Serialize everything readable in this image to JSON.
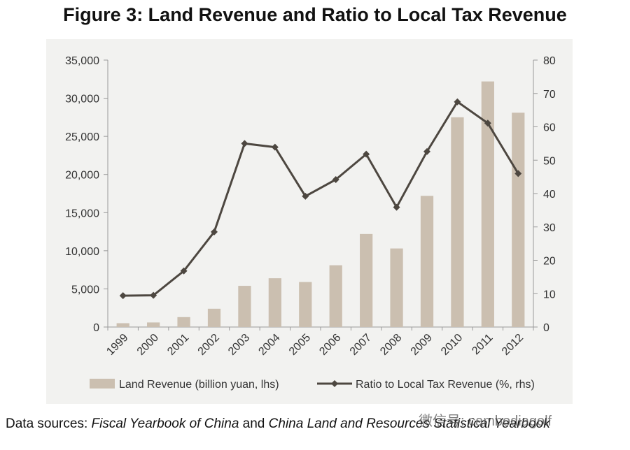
{
  "title": "Figure 3: Land Revenue and Ratio to Local Tax Revenue",
  "chart_data": {
    "type": "bar",
    "categories": [
      "1999",
      "2000",
      "2001",
      "2002",
      "2003",
      "2004",
      "2005",
      "2006",
      "2007",
      "2008",
      "2009",
      "2010",
      "2011",
      "2012"
    ],
    "series": [
      {
        "name": "Land Revenue (billion yuan, lhs)",
        "type": "bar",
        "axis": "left",
        "color": "#cbbfb0",
        "values": [
          500,
          600,
          1300,
          2400,
          5400,
          6400,
          5900,
          8100,
          12200,
          10300,
          17200,
          27500,
          32200,
          28100
        ]
      },
      {
        "name": "Ratio to Local Tax Revenue (%, rhs)",
        "type": "line",
        "axis": "right",
        "color": "#4d4740",
        "values": [
          9.4,
          9.5,
          16.8,
          28.5,
          55,
          53.9,
          39.2,
          44.2,
          51.8,
          35.9,
          52.6,
          67.5,
          61.1,
          46
        ]
      }
    ],
    "ylim_left": [
      0,
      35000
    ],
    "yticks_left": [
      "0",
      "5,000",
      "10,000",
      "15,000",
      "20,000",
      "25,000",
      "30,000",
      "35,000"
    ],
    "ylim_right": [
      0,
      80
    ],
    "yticks_right": [
      "0",
      "10",
      "20",
      "30",
      "40",
      "50",
      "60",
      "70",
      "80"
    ],
    "legend_position": "bottom"
  },
  "source": {
    "prefix": "Data sources: ",
    "book1": "Fiscal Yearbook of China",
    "and": " and ",
    "book2": "China Land and Resources Statistical Yearbook"
  },
  "watermark": "微信号: cambodiagolf"
}
